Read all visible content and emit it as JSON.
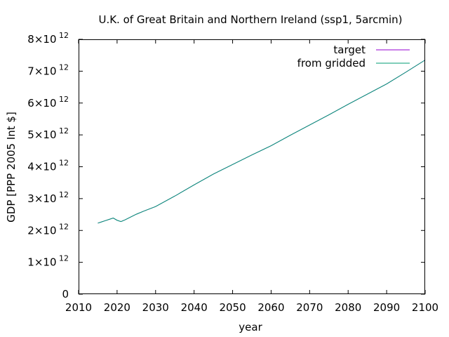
{
  "chart_data": {
    "type": "line",
    "title": "U.K. of Great Britain and Northern Ireland (ssp1, 5arcmin)",
    "xlabel": "year",
    "ylabel": "GDP [PPP 2005 Int $]",
    "xlim": [
      2010,
      2100
    ],
    "ylim": [
      0,
      8000000000000.0
    ],
    "x_ticks": [
      2010,
      2020,
      2030,
      2040,
      2050,
      2060,
      2070,
      2080,
      2090,
      2100
    ],
    "y_ticks": [
      {
        "value": 0,
        "mantissa": "0",
        "exponent": ""
      },
      {
        "value": 1000000000000.0,
        "mantissa": "1×10",
        "exponent": "12"
      },
      {
        "value": 2000000000000.0,
        "mantissa": "2×10",
        "exponent": "12"
      },
      {
        "value": 3000000000000.0,
        "mantissa": "3×10",
        "exponent": "12"
      },
      {
        "value": 4000000000000.0,
        "mantissa": "4×10",
        "exponent": "12"
      },
      {
        "value": 5000000000000.0,
        "mantissa": "5×10",
        "exponent": "12"
      },
      {
        "value": 6000000000000.0,
        "mantissa": "6×10",
        "exponent": "12"
      },
      {
        "value": 7000000000000.0,
        "mantissa": "7×10",
        "exponent": "12"
      },
      {
        "value": 8000000000000.0,
        "mantissa": "8×10",
        "exponent": "12"
      }
    ],
    "grid": false,
    "legend_position": "top-right",
    "series": [
      {
        "name": "target",
        "color": "#9400d3",
        "x": [
          2015,
          2016,
          2017,
          2018,
          2019,
          2020,
          2021,
          2022,
          2023,
          2025,
          2027,
          2030,
          2035,
          2040,
          2045,
          2050,
          2055,
          2060,
          2065,
          2070,
          2075,
          2080,
          2085,
          2090,
          2095,
          2100
        ],
        "y": [
          2230000000000.0,
          2270000000000.0,
          2310000000000.0,
          2350000000000.0,
          2390000000000.0,
          2320000000000.0,
          2280000000000.0,
          2330000000000.0,
          2390000000000.0,
          2510000000000.0,
          2610000000000.0,
          2750000000000.0,
          3080000000000.0,
          3430000000000.0,
          3770000000000.0,
          4070000000000.0,
          4370000000000.0,
          4660000000000.0,
          4990000000000.0,
          5310000000000.0,
          5630000000000.0,
          5960000000000.0,
          6280000000000.0,
          6600000000000.0,
          6970000000000.0,
          7350000000000.0
        ]
      },
      {
        "name": "from gridded",
        "color": "#009e73",
        "x": [
          2015,
          2016,
          2017,
          2018,
          2019,
          2020,
          2021,
          2022,
          2023,
          2025,
          2027,
          2030,
          2035,
          2040,
          2045,
          2050,
          2055,
          2060,
          2065,
          2070,
          2075,
          2080,
          2085,
          2090,
          2095,
          2100
        ],
        "y": [
          2230000000000.0,
          2270000000000.0,
          2310000000000.0,
          2350000000000.0,
          2390000000000.0,
          2320000000000.0,
          2280000000000.0,
          2330000000000.0,
          2390000000000.0,
          2510000000000.0,
          2610000000000.0,
          2750000000000.0,
          3080000000000.0,
          3430000000000.0,
          3770000000000.0,
          4070000000000.0,
          4370000000000.0,
          4660000000000.0,
          4990000000000.0,
          5310000000000.0,
          5630000000000.0,
          5960000000000.0,
          6280000000000.0,
          6600000000000.0,
          6970000000000.0,
          7350000000000.0
        ]
      }
    ]
  }
}
